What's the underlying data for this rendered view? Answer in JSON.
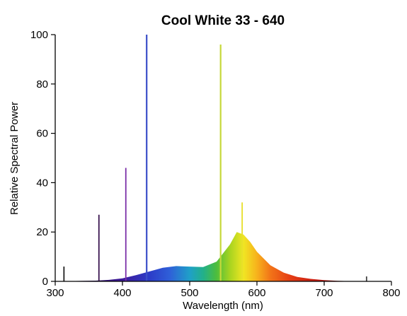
{
  "chart_data": {
    "type": "area",
    "title": "Cool White 33 - 640",
    "xlabel": "Wavelength (nm)",
    "ylabel": "Relative Spectral Power",
    "xlim": [
      300,
      800
    ],
    "ylim": [
      0,
      100
    ],
    "x_ticks": [
      300,
      400,
      500,
      600,
      700,
      800
    ],
    "y_ticks": [
      0,
      20,
      40,
      60,
      80,
      100
    ],
    "grid": false,
    "legend": "none",
    "continuum": {
      "x": [
        300,
        360,
        380,
        400,
        420,
        440,
        460,
        480,
        500,
        520,
        540,
        560,
        570,
        580,
        590,
        600,
        620,
        640,
        660,
        680,
        700,
        720,
        740,
        760,
        780,
        800
      ],
      "y": [
        0,
        0.3,
        0.6,
        1.2,
        2.5,
        4,
        5.5,
        6.2,
        6,
        5.8,
        8,
        15,
        20,
        19,
        16,
        12,
        6.5,
        3.5,
        1.8,
        1,
        0.5,
        0.2,
        0.1,
        0,
        0,
        0
      ]
    },
    "peaks": [
      {
        "x": 313,
        "y": 6
      },
      {
        "x": 365,
        "y": 27
      },
      {
        "x": 405,
        "y": 46
      },
      {
        "x": 436,
        "y": 100
      },
      {
        "x": 546,
        "y": 96
      },
      {
        "x": 578,
        "y": 32
      },
      {
        "x": 763,
        "y": 2
      }
    ]
  }
}
